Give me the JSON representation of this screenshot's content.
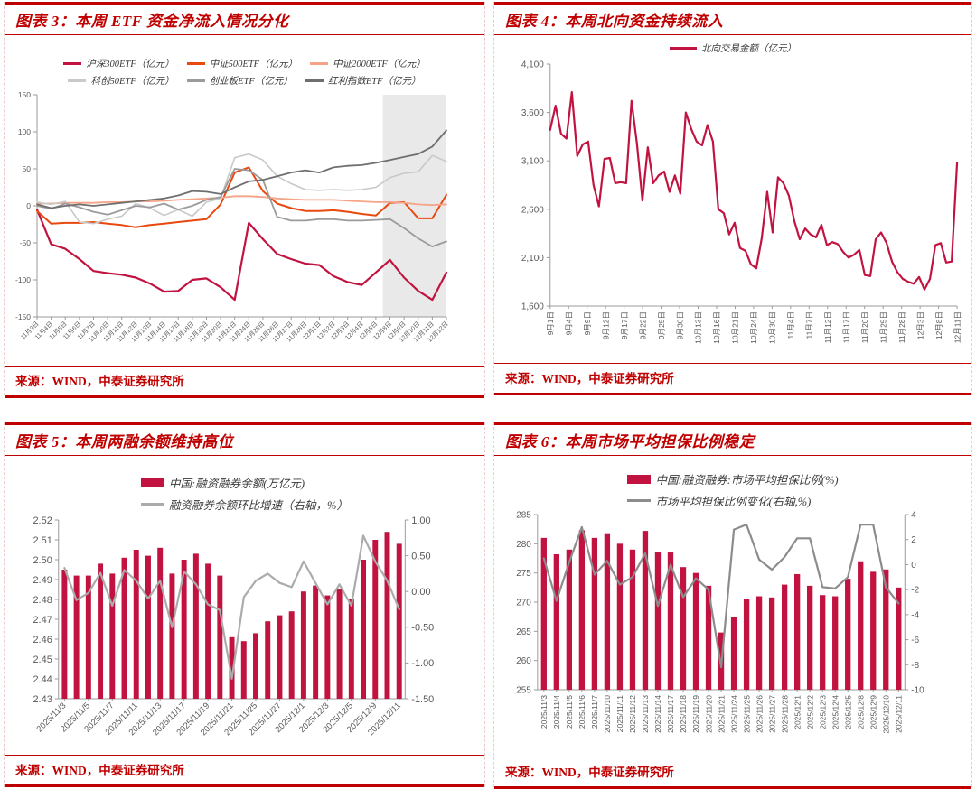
{
  "page": {
    "background": "#FFFFFF",
    "accent_red": "#C00000"
  },
  "panels": [
    {
      "id": "fig3",
      "title": "图表 3：本周 ETF 资金净流入情况分化",
      "source": "来源：WIND，中泰证券研究所"
    },
    {
      "id": "fig4",
      "title": "图表 4：本周北向资金持续流入",
      "source": "来源：WIND，中泰证券研究所"
    },
    {
      "id": "fig5",
      "title": "图表 5：本周两融余额维持高位",
      "source": "来源：WIND，中泰证券研究所"
    },
    {
      "id": "fig6",
      "title": "图表 6：本周市场平均担保比例稳定",
      "source": "来源：WIND，中泰证券研究所"
    }
  ],
  "chart_data": [
    {
      "id": "fig3",
      "type": "line",
      "title": "本周ETF资金净流入情况分化",
      "legend": [
        {
          "label": "沪深300ETF（亿元）",
          "color": "#C11240",
          "swatch": "line"
        },
        {
          "label": "中证500ETF（亿元）",
          "color": "#E8490F",
          "swatch": "line"
        },
        {
          "label": "中证2000ETF（亿元）",
          "color": "#F5A488",
          "swatch": "line"
        },
        {
          "label": "科创50ETF（亿元）",
          "color": "#C9C9C9",
          "swatch": "line"
        },
        {
          "label": "创业板ETF（亿元）",
          "color": "#9B9B9B",
          "swatch": "line"
        },
        {
          "label": "红利指数ETF（亿元）",
          "color": "#6F6F6F",
          "swatch": "line"
        }
      ],
      "x_labels": [
        "11月3日",
        "11月4日",
        "11月5日",
        "11月6日",
        "11月7日",
        "11月10日",
        "11月11日",
        "11月12日",
        "11月13日",
        "11月14日",
        "11月17日",
        "11月18日",
        "11月19日",
        "11月20日",
        "11月21日",
        "11月24日",
        "11月25日",
        "11月26日",
        "11月27日",
        "11月28日",
        "12月1日",
        "12月2日",
        "12月3日",
        "12月4日",
        "12月5日",
        "12月8日",
        "12月9日",
        "12月10日",
        "12月11日",
        "12月12日"
      ],
      "axes": {
        "left": {
          "min": -150,
          "max": 150,
          "ticks": [
            150,
            100,
            50,
            0,
            -50,
            -100,
            -150
          ],
          "labels": [
            "150",
            "100",
            "50",
            "0",
            "-50",
            "-100",
            "-150"
          ]
        }
      },
      "shade_from": 24.5,
      "shade_color": "#E9E9E9",
      "series": [
        {
          "name": "沪深300ETF（亿元）",
          "type": "line",
          "axis": "left",
          "color": "#C11240",
          "values": [
            -5,
            -52,
            -58,
            -72,
            -88,
            -91,
            -93,
            -97,
            -105,
            -116,
            -115,
            -100,
            -98,
            -110,
            -127,
            -23,
            -45,
            -65,
            -72,
            -78,
            -80,
            -95,
            -103,
            -107,
            -90,
            -73,
            -97,
            -115,
            -127,
            -90
          ]
        },
        {
          "name": "中证500ETF（亿元）",
          "type": "line",
          "axis": "left",
          "color": "#E8490F",
          "values": [
            -7,
            -24,
            -23,
            -23,
            -22,
            -24,
            -26,
            -29,
            -26,
            -24,
            -22,
            -20,
            -18,
            2,
            45,
            52,
            20,
            3,
            -3,
            -7,
            -7,
            -6,
            -8,
            -11,
            -13,
            4,
            5,
            -17,
            -17,
            15
          ]
        },
        {
          "name": "中证2000ETF（亿元）",
          "type": "line",
          "axis": "left",
          "color": "#F5A488",
          "values": [
            3,
            3,
            4,
            4,
            4,
            5,
            5,
            6,
            6,
            7,
            8,
            9,
            10,
            11,
            13,
            13,
            12,
            10,
            9,
            8,
            8,
            8,
            7,
            6,
            5,
            5,
            4,
            2,
            1,
            2
          ]
        },
        {
          "name": "科创50ETF（亿元）",
          "type": "line",
          "axis": "left",
          "color": "#C9C9C9",
          "values": [
            5,
            2,
            6,
            -22,
            -24,
            -18,
            -14,
            3,
            -3,
            -13,
            -5,
            -14,
            5,
            10,
            65,
            70,
            62,
            40,
            30,
            22,
            21,
            22,
            21,
            22,
            25,
            38,
            44,
            46,
            68,
            60
          ]
        },
        {
          "name": "创业板ETF（亿元）",
          "type": "line",
          "axis": "left",
          "color": "#9B9B9B",
          "values": [
            0,
            -4,
            3,
            -2,
            -8,
            -12,
            -6,
            0,
            -2,
            3,
            -5,
            0,
            8,
            12,
            50,
            48,
            35,
            -15,
            -20,
            -20,
            -18,
            -18,
            -20,
            -20,
            -19,
            -18,
            -30,
            -44,
            -55,
            -48
          ]
        },
        {
          "name": "红利指数ETF（亿元）",
          "type": "line",
          "axis": "left",
          "color": "#6F6F6F",
          "values": [
            2,
            -3,
            0,
            2,
            0,
            2,
            4,
            6,
            8,
            10,
            14,
            20,
            19,
            16,
            25,
            33,
            35,
            40,
            45,
            48,
            45,
            52,
            54,
            55,
            58,
            62,
            66,
            70,
            80,
            102
          ]
        }
      ]
    },
    {
      "id": "fig4",
      "type": "line",
      "title": "本周北向资金持续流入",
      "legend": [
        {
          "label": "北向交易金额（亿元）",
          "color": "#C11240",
          "swatch": "line"
        }
      ],
      "x_label_mode": "even",
      "x_labels": [
        "9月1日",
        "9月4日",
        "9月9日",
        "9月12日",
        "9月17日",
        "9月22日",
        "9月25日",
        "9月30日",
        "10月13日",
        "10月16日",
        "10月21日",
        "10月24日",
        "10月30日",
        "11月4日",
        "11月7日",
        "11月12日",
        "11月17日",
        "11月20日",
        "11月25日",
        "11月28日",
        "12月3日",
        "12月8日",
        "12月11日"
      ],
      "axes": {
        "left": {
          "min": 1600,
          "max": 4100,
          "ticks": [
            4100,
            3600,
            3100,
            2600,
            2100,
            1600
          ],
          "labels": [
            "4,100",
            "3,600",
            "3,100",
            "2,600",
            "2,100",
            "1,600"
          ]
        }
      },
      "series": [
        {
          "name": "北向交易金额（亿元）",
          "type": "line",
          "axis": "left",
          "color": "#C11240",
          "values": [
            3420,
            3670,
            3380,
            3330,
            3810,
            3150,
            3270,
            3300,
            2850,
            2630,
            3120,
            3130,
            2870,
            2880,
            2870,
            3720,
            3280,
            2690,
            3240,
            2870,
            2950,
            2990,
            2780,
            2950,
            2760,
            3600,
            3430,
            3300,
            3260,
            3470,
            3300,
            2600,
            2560,
            2340,
            2460,
            2200,
            2170,
            2030,
            1990,
            2300,
            2780,
            2360,
            2930,
            2870,
            2740,
            2480,
            2290,
            2400,
            2340,
            2310,
            2440,
            2230,
            2260,
            2240,
            2160,
            2100,
            2130,
            2180,
            1920,
            1910,
            2290,
            2360,
            2250,
            2060,
            1950,
            1880,
            1850,
            1830,
            1900,
            1770,
            1880,
            2230,
            2250,
            2050,
            2060,
            3080
          ]
        }
      ]
    },
    {
      "id": "fig5",
      "type": "combo",
      "title": "本周两融余额维持高位",
      "legend": [
        {
          "label": "中国:融资融券余额(万亿元)",
          "color": "#C11240",
          "swatch": "bar"
        },
        {
          "label": "融资融券余额环比增速（右轴，%）",
          "color": "#ABABAB",
          "swatch": "line"
        }
      ],
      "x_labels": [
        "2025/11/3",
        "2025/11/5",
        "2025/11/7",
        "2025/11/11",
        "2025/11/13",
        "2025/11/17",
        "2025/11/19",
        "2025/11/21",
        "2025/11/25",
        "2025/11/27",
        "2025/12/1",
        "2025/12/3",
        "2025/12/5",
        "2025/12/9",
        "2025/12/11"
      ],
      "x_label_indices": [
        0,
        2,
        4,
        6,
        8,
        10,
        12,
        14,
        16,
        18,
        20,
        22,
        24,
        26,
        28
      ],
      "axes": {
        "left": {
          "min": 2.43,
          "max": 2.52,
          "ticks": [
            2.52,
            2.51,
            2.5,
            2.49,
            2.48,
            2.47,
            2.46,
            2.45,
            2.44,
            2.43
          ],
          "labels": [
            "2.52",
            "2.51",
            "2.50",
            "2.49",
            "2.48",
            "2.47",
            "2.46",
            "2.45",
            "2.44",
            "2.43"
          ]
        },
        "right": {
          "min": -1.5,
          "max": 1.0,
          "ticks": [
            1.0,
            0.5,
            0.0,
            -0.5,
            -1.0,
            -1.5
          ],
          "labels": [
            "1.00",
            "0.50",
            "0.00",
            "-0.50",
            "-1.00",
            "-1.50"
          ]
        }
      },
      "series": [
        {
          "name": "中国:融资融券余额(万亿元)",
          "type": "bar",
          "axis": "left",
          "color": "#C11240",
          "values": [
            2.495,
            2.492,
            2.492,
            2.498,
            2.493,
            2.501,
            2.505,
            2.502,
            2.506,
            2.493,
            2.5,
            2.503,
            2.498,
            2.492,
            2.461,
            2.459,
            2.463,
            2.469,
            2.472,
            2.474,
            2.484,
            2.487,
            2.482,
            2.485,
            2.48,
            2.5,
            2.51,
            2.514,
            2.508
          ]
        },
        {
          "name": "融资融券余额环比增速（右轴，%）",
          "type": "line",
          "axis": "right",
          "color": "#ABABAB",
          "values": [
            0.33,
            -0.12,
            -0.02,
            0.26,
            -0.2,
            0.3,
            0.15,
            -0.1,
            0.15,
            -0.5,
            0.28,
            0.1,
            -0.18,
            -0.26,
            -1.22,
            -0.08,
            0.15,
            0.25,
            0.12,
            0.06,
            0.42,
            0.12,
            -0.18,
            0.1,
            -0.2,
            0.78,
            0.42,
            0.15,
            -0.25
          ]
        }
      ]
    },
    {
      "id": "fig6",
      "type": "combo",
      "title": "本周市场平均担保比例稳定",
      "legend": [
        {
          "label": "中国:融资融券:市场平均担保比例(%)",
          "color": "#C11240",
          "swatch": "bar"
        },
        {
          "label": "市场平均担保比例变化(右轴,%)",
          "color": "#8C8C8C",
          "swatch": "line"
        }
      ],
      "x_labels": [
        "2025/11/3",
        "2025/11/4",
        "2025/11/5",
        "2025/11/6",
        "2025/11/7",
        "2025/11/10",
        "2025/11/11",
        "2025/11/12",
        "2025/11/13",
        "2025/11/14",
        "2025/11/17",
        "2025/11/18",
        "2025/11/19",
        "2025/11/20",
        "2025/11/21",
        "2025/11/24",
        "2025/11/25",
        "2025/11/26",
        "2025/11/27",
        "2025/11/28",
        "2025/12/1",
        "2025/12/2",
        "2025/12/3",
        "2025/12/4",
        "2025/12/5",
        "2025/12/8",
        "2025/12/9",
        "2025/12/10",
        "2025/12/11"
      ],
      "axes": {
        "left": {
          "min": 255,
          "max": 285,
          "ticks": [
            285,
            280,
            275,
            270,
            265,
            260,
            255
          ],
          "labels": [
            "285",
            "280",
            "275",
            "270",
            "265",
            "260",
            "255"
          ]
        },
        "right": {
          "min": -10,
          "max": 4,
          "ticks": [
            4,
            2,
            0,
            -2,
            -4,
            -6,
            -8,
            -10
          ],
          "labels": [
            "4",
            "2",
            "0",
            "-2",
            "-4",
            "-6",
            "-8",
            "-10"
          ]
        }
      },
      "series": [
        {
          "name": "中国:融资融券:市场平均担保比例(%)",
          "type": "bar",
          "axis": "left",
          "color": "#C11240",
          "values": [
            281,
            278.2,
            279,
            282.3,
            281,
            281.8,
            280,
            279,
            282.2,
            278.5,
            278.5,
            276,
            275,
            272.8,
            264.8,
            267.5,
            270.6,
            271,
            270.8,
            273,
            274.8,
            272.8,
            271.2,
            271,
            274,
            277,
            275.2,
            275.6,
            272.5
          ]
        },
        {
          "name": "市场平均担保比例变化(右轴,%)",
          "type": "line",
          "axis": "right",
          "color": "#8C8C8C",
          "values": [
            0.5,
            -2.9,
            0.2,
            3.0,
            -0.8,
            0.3,
            -1.6,
            -1.0,
            0.9,
            -3.3,
            0.0,
            -2.6,
            -1.1,
            -2.0,
            -8.2,
            2.8,
            3.2,
            0.4,
            -0.4,
            0.6,
            2.1,
            2.1,
            -1.8,
            -1.9,
            -1.0,
            3.2,
            3.2,
            -1.8,
            -3.1
          ]
        }
      ]
    }
  ]
}
